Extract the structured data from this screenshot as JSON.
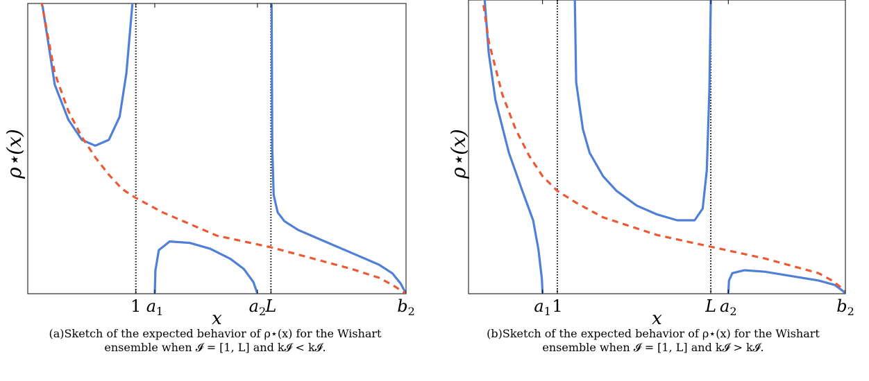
{
  "chart_data": [
    {
      "type": "line",
      "panel": "a",
      "xlabel": "x",
      "ylabel": "ρ⋆(x)",
      "xlim": [
        0.2,
        3.0
      ],
      "ylim": [
        0,
        10
      ],
      "grid": false,
      "x_ticks": [
        {
          "value": 1.0,
          "main": "1",
          "sub": ""
        },
        {
          "value": 1.14,
          "main": "a",
          "sub": "1"
        },
        {
          "value": 1.9,
          "main": "a",
          "sub": "2"
        },
        {
          "value": 2.0,
          "main": "L",
          "sub": ""
        },
        {
          "value": 3.0,
          "main": "b",
          "sub": "2"
        }
      ],
      "vertical_lines": [
        1.0,
        2.0
      ],
      "series": [
        {
          "style": "solid",
          "color": "#4f7fd6",
          "x": [
            0.31,
            0.4,
            0.5,
            0.6,
            0.7,
            0.8,
            0.88,
            0.93,
            0.96,
            0.975
          ],
          "y": [
            9.9,
            7.2,
            6.0,
            5.3,
            5.1,
            5.3,
            6.1,
            7.6,
            9.2,
            10.0
          ]
        },
        {
          "style": "solid",
          "color": "#4f7fd6",
          "x": [
            1.14,
            1.145,
            1.17,
            1.25,
            1.4,
            1.55,
            1.7,
            1.8,
            1.87,
            1.9
          ],
          "y": [
            0.0,
            0.8,
            1.5,
            1.8,
            1.75,
            1.55,
            1.2,
            0.85,
            0.4,
            0.0
          ]
        },
        {
          "style": "solid",
          "color": "#4f7fd6",
          "x": [
            2.005,
            2.01,
            2.02,
            2.05,
            2.1,
            2.2,
            2.4,
            2.6,
            2.8,
            2.9,
            2.96,
            3.0
          ],
          "y": [
            10.0,
            5.0,
            3.4,
            2.8,
            2.5,
            2.2,
            1.8,
            1.4,
            1.0,
            0.7,
            0.35,
            0.0
          ]
        },
        {
          "style": "dashed",
          "color": "#ea5a35",
          "x": [
            0.3,
            0.4,
            0.5,
            0.6,
            0.7,
            0.8,
            0.9,
            1.0,
            1.2,
            1.4,
            1.6,
            1.8,
            2.0,
            2.2,
            2.4,
            2.6,
            2.8,
            2.9,
            3.0
          ],
          "y": [
            10.1,
            7.6,
            6.3,
            5.4,
            4.7,
            4.1,
            3.6,
            3.3,
            2.8,
            2.4,
            2.0,
            1.8,
            1.6,
            1.35,
            1.1,
            0.85,
            0.55,
            0.3,
            0.0
          ]
        }
      ]
    },
    {
      "type": "line",
      "panel": "b",
      "xlabel": "x",
      "ylabel": "ρ⋆(x)",
      "xlim": [
        0.2,
        3.0
      ],
      "ylim": [
        0,
        10
      ],
      "grid": false,
      "x_ticks": [
        {
          "value": 0.75,
          "main": "a",
          "sub": "1"
        },
        {
          "value": 0.86,
          "main": "1",
          "sub": ""
        },
        {
          "value": 2.0,
          "main": "L",
          "sub": ""
        },
        {
          "value": 2.13,
          "main": "a",
          "sub": "2"
        },
        {
          "value": 3.0,
          "main": "b",
          "sub": "2"
        }
      ],
      "vertical_lines": [
        0.86,
        2.0
      ],
      "series": [
        {
          "style": "solid",
          "color": "#4f7fd6",
          "x": [
            0.32,
            0.35,
            0.4,
            0.5,
            0.6,
            0.68,
            0.72,
            0.745,
            0.75
          ],
          "y": [
            10.0,
            8.2,
            6.6,
            4.8,
            3.5,
            2.5,
            1.5,
            0.5,
            0.0
          ]
        },
        {
          "style": "solid",
          "color": "#4f7fd6",
          "x": [
            0.99,
            0.995,
            1.0,
            1.05,
            1.1,
            1.2,
            1.3,
            1.45,
            1.6,
            1.75,
            1.88,
            1.94,
            1.97,
            1.99,
            2.0
          ],
          "y": [
            10.0,
            8.5,
            7.2,
            5.6,
            4.8,
            4.0,
            3.5,
            3.0,
            2.7,
            2.5,
            2.5,
            2.9,
            4.2,
            7.0,
            10.0
          ]
        },
        {
          "style": "solid",
          "color": "#4f7fd6",
          "x": [
            2.13,
            2.135,
            2.16,
            2.25,
            2.4,
            2.6,
            2.8,
            2.92,
            2.98,
            3.0
          ],
          "y": [
            0.0,
            0.45,
            0.7,
            0.8,
            0.75,
            0.6,
            0.45,
            0.3,
            0.1,
            0.0
          ]
        },
        {
          "style": "dashed",
          "color": "#ea5a35",
          "x": [
            0.3,
            0.35,
            0.45,
            0.55,
            0.65,
            0.75,
            0.86,
            1.0,
            1.2,
            1.4,
            1.6,
            1.8,
            2.0,
            2.2,
            2.4,
            2.6,
            2.8,
            2.9,
            3.0
          ],
          "y": [
            10.2,
            8.6,
            6.8,
            5.6,
            4.7,
            4.0,
            3.5,
            3.1,
            2.6,
            2.3,
            2.0,
            1.8,
            1.6,
            1.4,
            1.2,
            0.95,
            0.7,
            0.45,
            0.1
          ]
        }
      ]
    }
  ],
  "captions": {
    "a": {
      "label": "(a)",
      "line1": "Sketch of the expected behavior of ρ⋆(x) for the Wishart",
      "line2": "ensemble when 𝓘 = [1, L] and k𝓘 < k𝓘."
    },
    "b": {
      "label": "(b)",
      "line1": "Sketch of the expected behavior of ρ⋆(x) for the Wishart",
      "line2": "ensemble when 𝓘 = [1, L] and k𝓘 > k𝓘."
    }
  },
  "colors": {
    "solid": "#4f7fd6",
    "dashed": "#ea5a35",
    "axes": "#000000"
  }
}
